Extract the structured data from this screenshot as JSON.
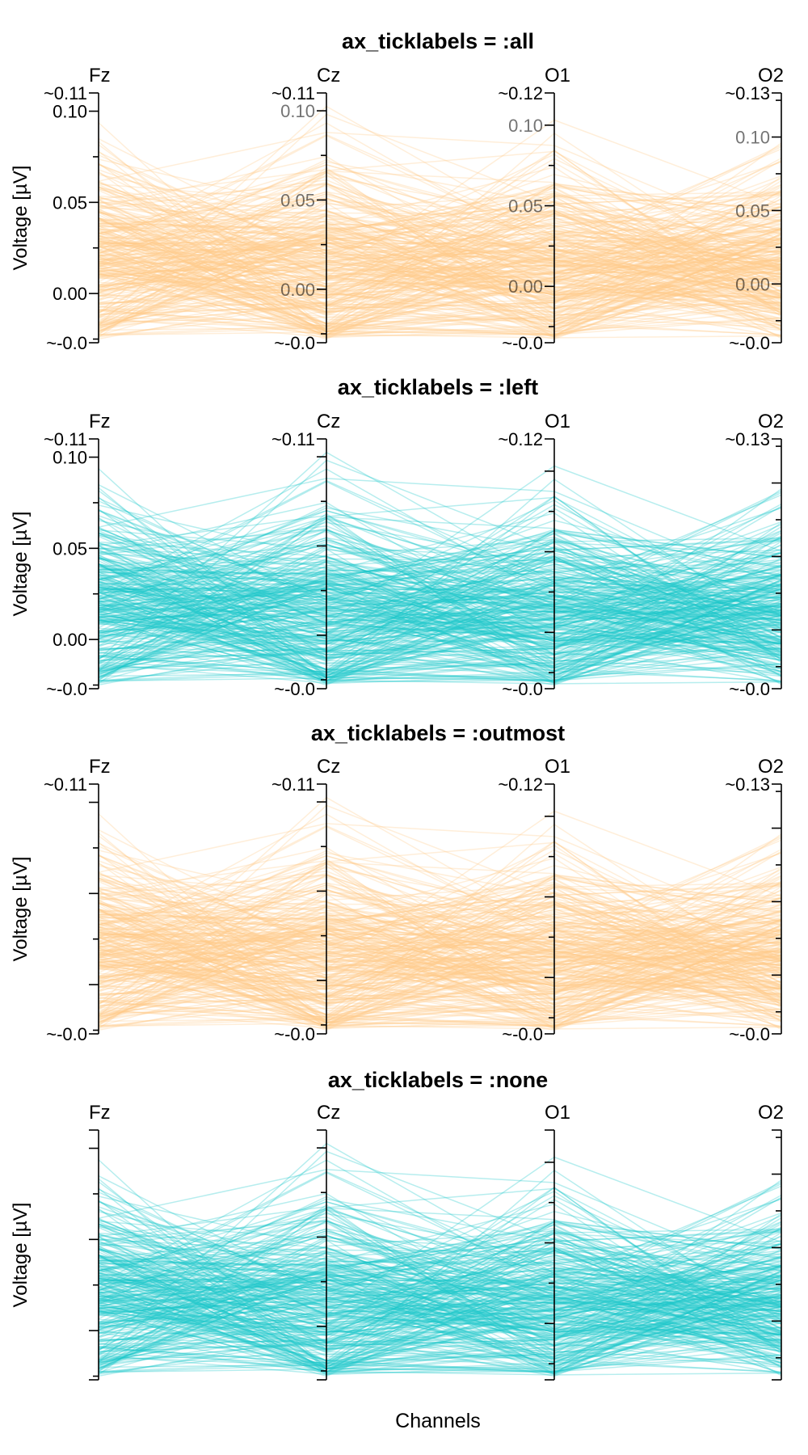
{
  "chart_data": {
    "type": "line",
    "subtype": "parallel-coordinates",
    "xlabel": "Channels",
    "ylabel": "Voltage [µV]",
    "channels": [
      "Fz",
      "Cz",
      "O1",
      "O2"
    ],
    "axis_ranges": {
      "Fz": [
        -0.027,
        0.11
      ],
      "Cz": [
        -0.03,
        0.11
      ],
      "O1": [
        -0.035,
        0.12
      ],
      "O2": [
        -0.04,
        0.13
      ]
    },
    "range_labels": {
      "Fz": {
        "top": "~0.11",
        "bottom": "~-0.0"
      },
      "Cz": {
        "top": "~0.11",
        "bottom": "~-0.0"
      },
      "O1": {
        "top": "~0.12",
        "bottom": "~-0.0"
      },
      "O2": {
        "top": "~0.13",
        "bottom": "~-0.0"
      }
    },
    "tick_values": [
      0.0,
      0.05,
      0.1
    ],
    "tick_labels": [
      "0.00",
      "0.05",
      "0.10"
    ],
    "line_count": 300,
    "panels": [
      {
        "title": "ax_ticklabels = :all",
        "mode": "all",
        "color": "#FFC98A"
      },
      {
        "title": "ax_ticklabels = :left",
        "mode": "left",
        "color": "#1CC7C9"
      },
      {
        "title": "ax_ticklabels = :outmost",
        "mode": "outmost",
        "color": "#FFC98A"
      },
      {
        "title": "ax_ticklabels = :none",
        "mode": "none",
        "color": "#1CC7C9"
      }
    ]
  }
}
